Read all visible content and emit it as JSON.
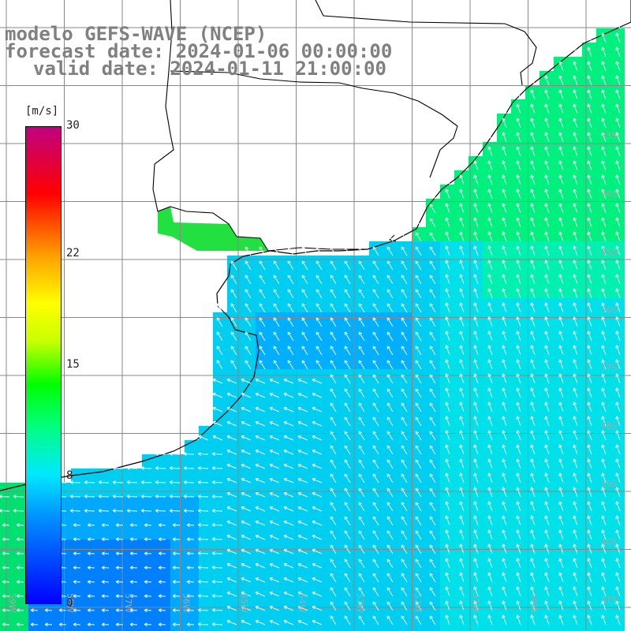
{
  "title": {
    "model": "modelo GEFS-WAVE (NCEP)",
    "forecast": "forecast date: 2024-01-06 00:00:00",
    "valid": "valid date: 2024-01-11 21:00:00"
  },
  "colorbar": {
    "unit": "[m/s]",
    "ticks": [
      {
        "label": "30",
        "value": 30
      },
      {
        "label": "22",
        "value": 22
      },
      {
        "label": "15",
        "value": 15
      },
      {
        "label": "8",
        "value": 8
      },
      {
        "label": "0",
        "value": 0
      }
    ]
  },
  "map": {
    "lat_labels": [
      "33S",
      "34S",
      "35S",
      "36S",
      "37S",
      "38S",
      "39S",
      "40S",
      "41S"
    ],
    "lon_labels": [
      "59W",
      "58W",
      "57W",
      "56W",
      "55W",
      "54W",
      "53W",
      "52W",
      "51W",
      "50W"
    ],
    "colors": {
      "land": "#ffffff",
      "grid": "#888888",
      "coast": "#000000",
      "arrow": "#ffffff"
    }
  }
}
